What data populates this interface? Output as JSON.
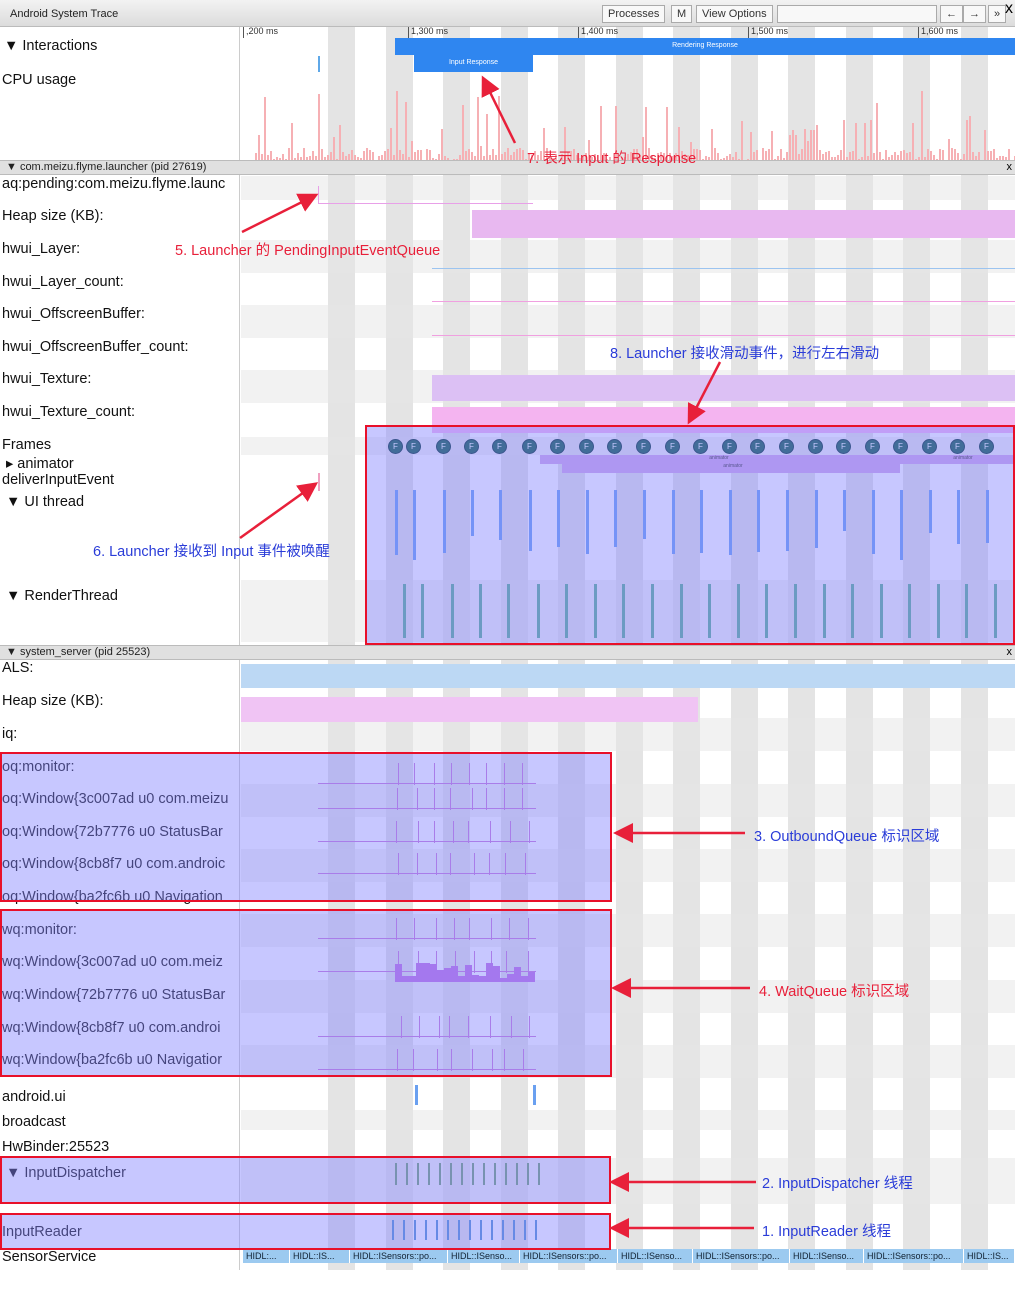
{
  "window": {
    "title": "Android System Trace",
    "buttons": [
      "Processes",
      "M",
      "View Options"
    ],
    "nav": [
      "←",
      "→",
      "»"
    ]
  },
  "ruler": {
    "ticks": [
      ",200 ms",
      "1,300 ms",
      "1,400 ms",
      "1,500 ms",
      "1,600 ms"
    ]
  },
  "interactions": {
    "rendering": "Rendering Response",
    "input": "Input Response"
  },
  "launcher": {
    "header": "▼ com.meizu.flyme.launcher (pid 27619)",
    "close": "x",
    "rows": [
      "aq:pending:com.meizu.flyme.launc",
      "Heap size (KB):",
      "hwui_Layer:",
      "hwui_Layer_count:",
      "hwui_OffscreenBuffer:",
      "hwui_OffscreenBuffer_count:",
      "hwui_Texture:",
      "hwui_Texture_count:",
      "Frames",
      "▸ animator",
      "deliverInputEvent",
      "▼ UI thread",
      "▼ RenderThread"
    ],
    "frame_label": "F",
    "animator_labels": [
      "animator",
      "animator",
      "animator"
    ]
  },
  "top_rows": [
    "▼ Interactions",
    "CPU usage"
  ],
  "system_server": {
    "header": "▼ system_server (pid 25523)",
    "close": "x",
    "rows": [
      "ALS:",
      "Heap size (KB):",
      "iq:",
      "oq:monitor:",
      "oq:Window{3c007ad u0 com.meizu",
      "oq:Window{72b7776 u0 StatusBar",
      "oq:Window{8cb8f7 u0 com.androic",
      "oq:Window{ba2fc6b u0 Navigation",
      "wq:monitor:",
      "wq:Window{3c007ad u0 com.meiz",
      "wq:Window{72b7776 u0 StatusBar",
      "wq:Window{8cb8f7 u0 com.androi",
      "wq:Window{ba2fc6b u0 Navigatior",
      "android.ui",
      "broadcast",
      "HwBinder:25523",
      "▼ InputDispatcher",
      "InputReader",
      "SensorService"
    ],
    "sensor_slices": [
      "HIDL:...",
      "HIDL::IS...",
      "HIDL::ISensors::po...",
      "HIDL::ISenso...",
      "HIDL::ISensors::po...",
      "HIDL::ISenso...",
      "HIDL::ISensors::po...",
      "HIDL::ISenso...",
      "HIDL::ISensors::po...",
      "HIDL::IS..."
    ]
  },
  "annotations": {
    "a1": "1. InputReader 线程",
    "a2": "2. InputDispatcher 线程",
    "a3": "3. OutboundQueue 标识区域",
    "a4": "4. WaitQueue 标识区域",
    "a5": "5. Launcher 的  PendingInputEventQueue",
    "a6": "6. Launcher 接收到 Input 事件被唤醒",
    "a7": "7. 表示 Input 的 Response",
    "a8": "8. Launcher 接收滑动事件，进行左右滑动"
  },
  "colors": {
    "highlight_border": "#e8102a",
    "highlight_fill": "#8282ff",
    "rendering": "#2f86f0",
    "frame": "#0d5c45",
    "annotation_red": "#e8203a",
    "annotation_blue": "#2a3cd8"
  }
}
